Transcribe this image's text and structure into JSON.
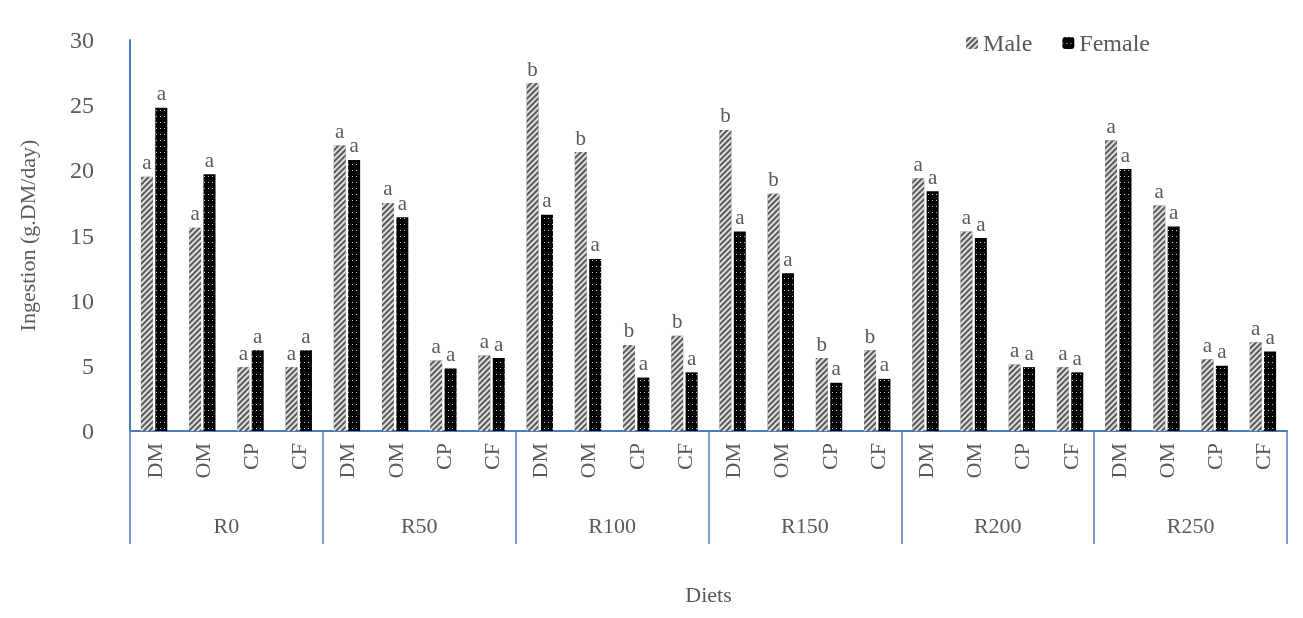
{
  "chart_data": {
    "type": "bar",
    "xlabel": "Diets",
    "ylabel": "Ingestion (g.DM/day)",
    "categories": [
      "DM",
      "OM",
      "CP",
      "CF",
      "DM",
      "OM",
      "CP",
      "CF",
      "DM",
      "OM",
      "CP",
      "CF",
      "DM",
      "OM",
      "CP",
      "CF",
      "DM",
      "OM",
      "CP",
      "CF",
      "DM",
      "OM",
      "CP",
      "CF"
    ],
    "annotations": [
      "R0",
      "R50",
      "R100",
      "R150",
      "R200",
      "R250"
    ],
    "series": [
      {
        "name": "Male",
        "color": "#595959",
        "values": [
          19.5,
          15.6,
          4.9,
          4.9,
          21.9,
          17.5,
          5.4,
          5.8,
          26.7,
          21.4,
          6.6,
          7.3,
          23.1,
          18.2,
          5.6,
          6.2,
          19.4,
          15.3,
          5.1,
          4.9,
          22.3,
          17.3,
          5.5,
          6.8
        ],
        "value_labels": [
          "a",
          "a",
          "a",
          "a",
          "a",
          "a",
          "a",
          "a",
          "b",
          "b",
          "b",
          "b",
          "b",
          "b",
          "b",
          "b",
          "a",
          "a",
          "a",
          "a",
          "a",
          "a",
          "a",
          "a"
        ]
      },
      {
        "name": "Female",
        "color": "#000000",
        "values": [
          24.8,
          19.7,
          6.2,
          6.2,
          20.8,
          16.4,
          4.8,
          5.6,
          16.6,
          13.2,
          4.1,
          4.5,
          15.3,
          12.1,
          3.7,
          4.0,
          18.4,
          14.8,
          4.9,
          4.5,
          20.1,
          15.7,
          5.0,
          6.1
        ],
        "value_labels": [
          "a",
          "a",
          "a",
          "a",
          "a",
          "a",
          "a",
          "a",
          "a",
          "a",
          "a",
          "a",
          "a",
          "a",
          "a",
          "a",
          "a",
          "a",
          "a",
          "a",
          "a",
          "a",
          "a",
          "a"
        ]
      }
    ],
    "ylim": [
      0,
      30
    ],
    "yticks": [
      0,
      5,
      10,
      15,
      20,
      25,
      30
    ],
    "grid": false,
    "legend": "top right"
  }
}
